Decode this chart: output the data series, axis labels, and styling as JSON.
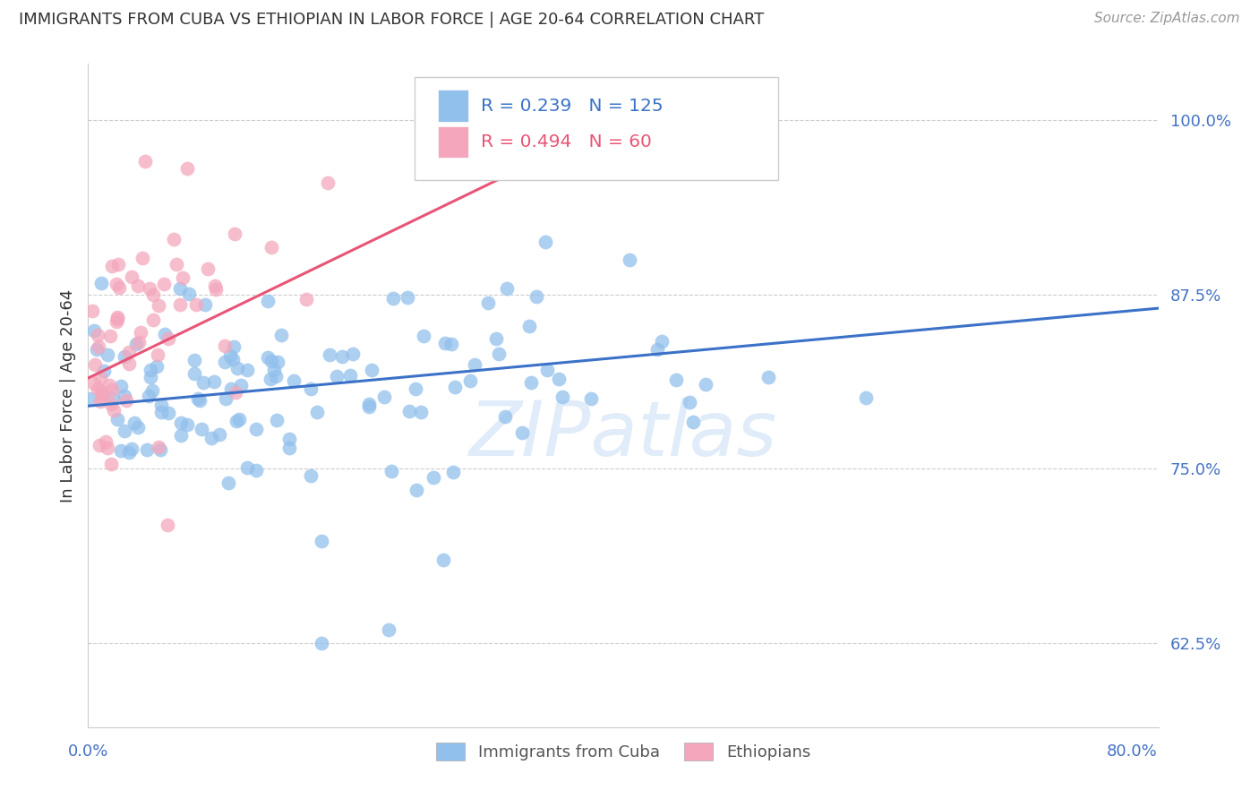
{
  "title": "IMMIGRANTS FROM CUBA VS ETHIOPIAN IN LABOR FORCE | AGE 20-64 CORRELATION CHART",
  "source": "Source: ZipAtlas.com",
  "ylabel": "In Labor Force | Age 20-64",
  "ytick_vals": [
    0.625,
    0.75,
    0.875,
    1.0
  ],
  "ytick_labels": [
    "62.5%",
    "75.0%",
    "87.5%",
    "100.0%"
  ],
  "xlim": [
    0.0,
    0.82
  ],
  "ylim": [
    0.565,
    1.04
  ],
  "blue_color": "#92C0EC",
  "pink_color": "#F4A7BC",
  "blue_line_color": "#3B72C8",
  "pink_line_color": "#E85577",
  "axis_color": "#4472C4",
  "grid_color": "#CCCCCC",
  "legend_blue_R": "0.239",
  "legend_blue_N": "125",
  "legend_pink_R": "0.494",
  "legend_pink_N": "60",
  "watermark": "ZIPatlas",
  "blue_trend_x0": 0.0,
  "blue_trend_y0": 0.795,
  "blue_trend_x1": 0.82,
  "blue_trend_y1": 0.865,
  "pink_trend_x0": 0.0,
  "pink_trend_y0": 0.815,
  "pink_trend_x1": 0.42,
  "pink_trend_y1": 1.005
}
